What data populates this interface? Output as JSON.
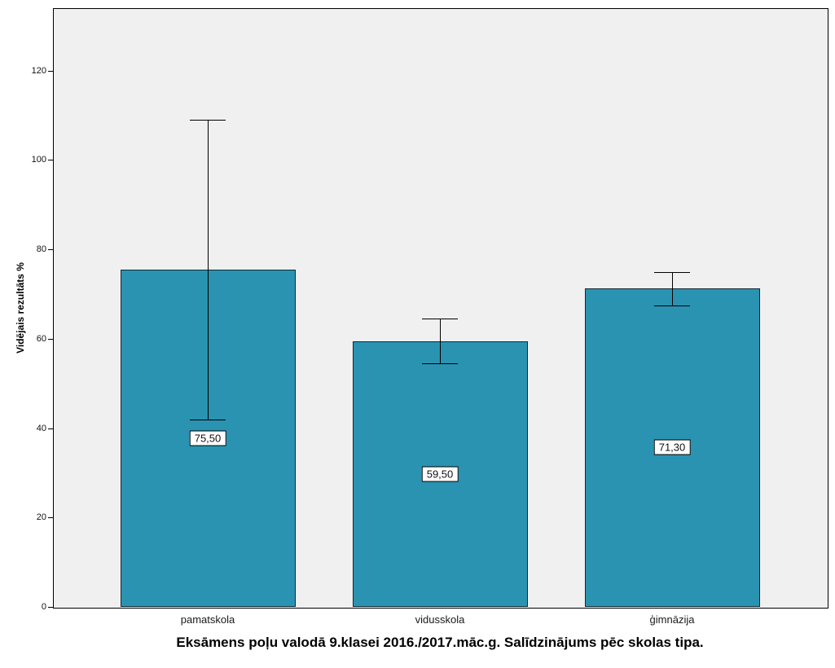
{
  "chart_data": {
    "type": "bar",
    "title": "Eksāmens poļu valodā 9.klasei 2016./2017.māc.g. Salīdzinājums pēc skolas tipa.",
    "ylabel": "Vidējais rezultāts %",
    "xlabel": "",
    "categories": [
      "pamatskola",
      "vidusskola",
      "ģimnāzija"
    ],
    "values": [
      75.5,
      59.5,
      71.3
    ],
    "value_labels": [
      "75,50",
      "59,50",
      "71,30"
    ],
    "error_lower": [
      42,
      54.5,
      67.5
    ],
    "error_upper": [
      109,
      64.5,
      75
    ],
    "yticks": [
      0,
      20,
      40,
      60,
      80,
      100,
      120
    ],
    "ylim": [
      0,
      134
    ],
    "grid": false,
    "legend": "none",
    "bar_color": "#2a93b2",
    "bar_border_color": "#0d2b36",
    "plot_bg": "#f0f0f0"
  }
}
